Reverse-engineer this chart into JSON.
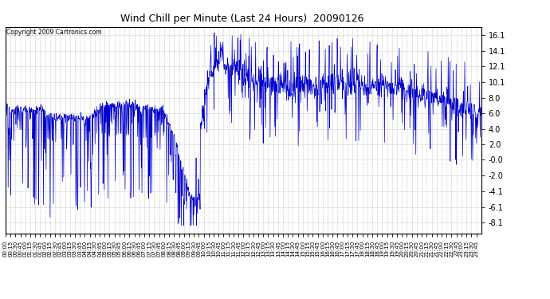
{
  "title": "Wind Chill per Minute (Last 24 Hours)  20090126",
  "copyright": "Copyright 2009 Cartronics.com",
  "line_color": "#0000CC",
  "bg_color": "#ffffff",
  "grid_color": "#999999",
  "yticks": [
    16.1,
    14.1,
    12.1,
    10.1,
    8.0,
    6.0,
    4.0,
    2.0,
    -0.0,
    -2.0,
    -4.1,
    -6.1,
    -8.1
  ],
  "ylim": [
    -9.5,
    17.2
  ],
  "xtick_interval": 15,
  "total_minutes": 1440,
  "figsize": [
    6.9,
    3.75
  ],
  "dpi": 100
}
